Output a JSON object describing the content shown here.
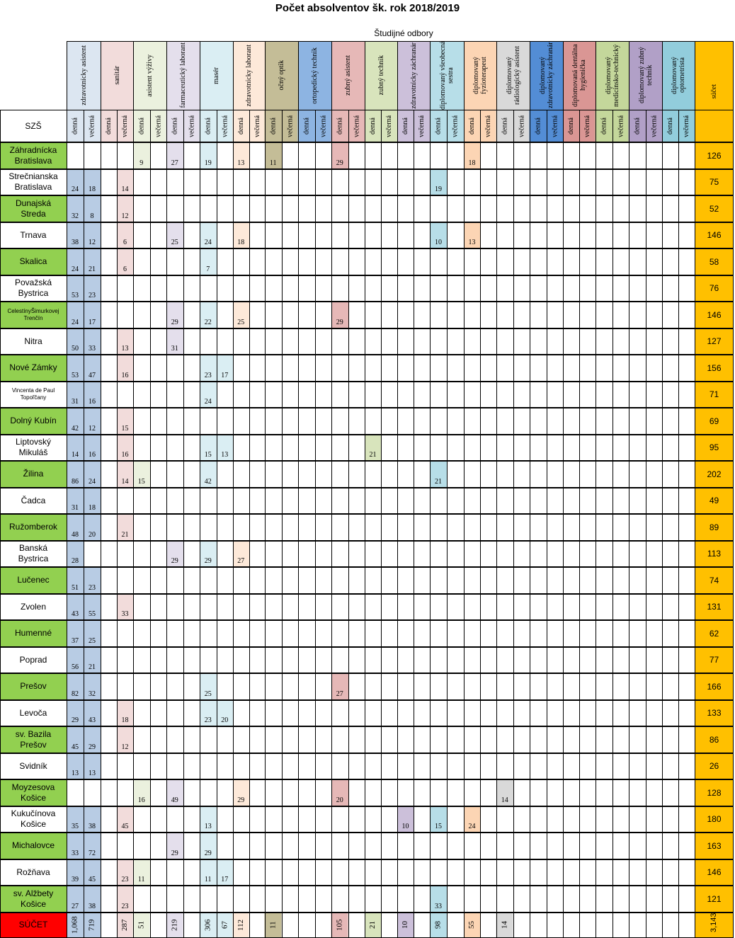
{
  "title": "Počet absolventov šk. rok 2018/2019",
  "subtitle": "Študijné odbory",
  "szs_label": "SZŠ",
  "sum_col_label": "súčet",
  "form_day": "denná",
  "form_evening": "večerná",
  "colors": {
    "header_green": "#92d050",
    "sum_orange": "#ffc000",
    "total_red": "#ff0000"
  },
  "specialties": [
    {
      "name": "zdravotnícky asistent",
      "header_color": "#dce6f1",
      "cell_color": "#b8cce4"
    },
    {
      "name": "sanitár",
      "header_color": "#f2dcdb",
      "cell_color": "#f2dcdb"
    },
    {
      "name": "asistent výživy",
      "header_color": "#ebf1de",
      "cell_color": "#ebf1de"
    },
    {
      "name": "farmaceutický laborant",
      "header_color": "#e4dfec",
      "cell_color": "#e4dfec"
    },
    {
      "name": "masér",
      "header_color": "#daeef3",
      "cell_color": "#daeef3"
    },
    {
      "name": "zdravotnícky laborant",
      "header_color": "#fde9d9",
      "cell_color": "#fde9d9"
    },
    {
      "name": "očný optik",
      "header_color": "#c4bd97",
      "cell_color": "#c4bd97"
    },
    {
      "name": "ortopedický technik",
      "header_color": "#8db4e2",
      "cell_color": "#8db4e2"
    },
    {
      "name": "zubný asistent",
      "header_color": "#e6b8b7",
      "cell_color": "#e6b8b7"
    },
    {
      "name": "zubný technik",
      "header_color": "#d8e4bc",
      "cell_color": "#d8e4bc"
    },
    {
      "name": "zdravotnícky záchranár",
      "header_color": "#ccc0da",
      "cell_color": "#ccc0da"
    },
    {
      "name": "diplomovaný všeobecná sestra",
      "header_color": "#b7dee8",
      "cell_color": "#b7dee8"
    },
    {
      "name": "diplomovaný fyzioterapeut",
      "header_color": "#fcd5b4",
      "cell_color": "#fcd5b4"
    },
    {
      "name": "diplomovaný rádiologický asistent",
      "header_color": "#d9d9d9",
      "cell_color": "#d9d9d9"
    },
    {
      "name": "diplomovaný zdravotnícky záchranár",
      "header_color": "#538dd5",
      "cell_color": "#538dd5"
    },
    {
      "name": "diplomovaná dentálna hygienička",
      "header_color": "#da9694",
      "cell_color": "#da9694"
    },
    {
      "name": "diplomovaný medicínsko-technický",
      "header_color": "#c4d79b",
      "cell_color": "#c4d79b"
    },
    {
      "name": "diplomovaný zubný technik",
      "header_color": "#b1a0c7",
      "cell_color": "#b1a0c7"
    },
    {
      "name": "diplomovaný optometrista",
      "header_color": "#92cddc",
      "cell_color": "#92cddc"
    }
  ],
  "rows": [
    {
      "school": "Záhradnícka\nBratislava",
      "green": true,
      "small": false,
      "cells": {
        "4": "9",
        "6": "27",
        "8": "19",
        "10": "13",
        "12": "11",
        "16": "29",
        "24": "18"
      },
      "sum": "126"
    },
    {
      "school": "Strečnianska\nBratislava",
      "green": false,
      "small": false,
      "cells": {
        "0": "24",
        "1": "18",
        "3": "14",
        "22": "19"
      },
      "sum": "75"
    },
    {
      "school": "Dunajská\nStreda",
      "green": true,
      "small": false,
      "cells": {
        "0": "32",
        "1": "8",
        "3": "12"
      },
      "sum": "52"
    },
    {
      "school": "Trnava",
      "green": false,
      "small": false,
      "cells": {
        "0": "38",
        "1": "12",
        "3": "6",
        "6": "25",
        "8": "24",
        "10": "18",
        "22": "10",
        "24": "13"
      },
      "sum": "146"
    },
    {
      "school": "Skalica",
      "green": true,
      "small": false,
      "cells": {
        "0": "24",
        "1": "21",
        "3": "6",
        "8": "7"
      },
      "sum": "58"
    },
    {
      "school": "Považská\nBystrica",
      "green": false,
      "small": false,
      "cells": {
        "0": "53",
        "1": "23"
      },
      "sum": "76"
    },
    {
      "school": "CelestínyŠimurkovej\nTrenčín",
      "green": true,
      "small": true,
      "cells": {
        "0": "24",
        "1": "17",
        "6": "29",
        "8": "22",
        "10": "25",
        "16": "29"
      },
      "sum": "146"
    },
    {
      "school": "Nitra",
      "green": false,
      "small": false,
      "cells": {
        "0": "50",
        "1": "33",
        "3": "13",
        "6": "31"
      },
      "sum": "127"
    },
    {
      "school": "Nové Zámky",
      "green": true,
      "small": false,
      "cells": {
        "0": "53",
        "1": "47",
        "3": "16",
        "8": "23",
        "9": "17"
      },
      "sum": "156"
    },
    {
      "school": "Vincenta de Paul\nTopoľčany",
      "green": false,
      "small": true,
      "cells": {
        "0": "31",
        "1": "16",
        "8": "24"
      },
      "sum": "71"
    },
    {
      "school": "Dolný Kubín",
      "green": true,
      "small": false,
      "cells": {
        "0": "42",
        "1": "12",
        "3": "15"
      },
      "sum": "69"
    },
    {
      "school": "Liptovský\nMikuláš",
      "green": false,
      "small": false,
      "cells": {
        "0": "14",
        "1": "16",
        "3": "16",
        "8": "15",
        "9": "13",
        "18": "21"
      },
      "sum": "95"
    },
    {
      "school": "Žilina",
      "green": true,
      "small": false,
      "cells": {
        "0": "86",
        "1": "24",
        "3": "14",
        "4": "15",
        "8": "42",
        "22": "21"
      },
      "sum": "202"
    },
    {
      "school": "Čadca",
      "green": false,
      "small": false,
      "cells": {
        "0": "31",
        "1": "18"
      },
      "sum": "49"
    },
    {
      "school": "Ružomberok",
      "green": true,
      "small": false,
      "cells": {
        "0": "48",
        "1": "20",
        "3": "21"
      },
      "sum": "89"
    },
    {
      "school": "Banská\nBystrica",
      "green": false,
      "small": false,
      "cells": {
        "0": "28",
        "6": "29",
        "8": "29",
        "10": "27"
      },
      "sum": "113"
    },
    {
      "school": "Lučenec",
      "green": true,
      "small": false,
      "cells": {
        "0": "51",
        "1": "23"
      },
      "sum": "74"
    },
    {
      "school": "Zvolen",
      "green": false,
      "small": false,
      "cells": {
        "0": "43",
        "1": "55",
        "3": "33"
      },
      "sum": "131"
    },
    {
      "school": "Humenné",
      "green": true,
      "small": false,
      "cells": {
        "0": "37",
        "1": "25"
      },
      "sum": "62"
    },
    {
      "school": "Poprad",
      "green": false,
      "small": false,
      "cells": {
        "0": "56",
        "1": "21"
      },
      "sum": "77"
    },
    {
      "school": "Prešov",
      "green": true,
      "small": false,
      "cells": {
        "0": "82",
        "1": "32",
        "8": "25",
        "16": "27"
      },
      "sum": "166"
    },
    {
      "school": "Levoča",
      "green": false,
      "small": false,
      "cells": {
        "0": "29",
        "1": "43",
        "3": "18",
        "8": "23",
        "9": "20"
      },
      "sum": "133"
    },
    {
      "school": "sv. Bazila\nPrešov",
      "green": true,
      "small": false,
      "cells": {
        "0": "45",
        "1": "29",
        "3": "12"
      },
      "sum": "86"
    },
    {
      "school": "Svidník",
      "green": false,
      "small": false,
      "cells": {
        "0": "13",
        "1": "13"
      },
      "sum": "26"
    },
    {
      "school": "Moyzesova\nKošice",
      "green": true,
      "small": false,
      "cells": {
        "4": "16",
        "6": "49",
        "10": "29",
        "16": "20",
        "26": "14"
      },
      "sum": "128"
    },
    {
      "school": "Kukučínova\nKošice",
      "green": false,
      "small": false,
      "cells": {
        "0": "35",
        "1": "38",
        "3": "45",
        "8": "13",
        "20": "10",
        "22": "15",
        "24": "24"
      },
      "sum": "180"
    },
    {
      "school": "Michalovce",
      "green": true,
      "small": false,
      "cells": {
        "0": "33",
        "1": "72",
        "6": "29",
        "8": "29"
      },
      "sum": "163"
    },
    {
      "school": "Rožňava",
      "green": false,
      "small": false,
      "cells": {
        "0": "39",
        "1": "45",
        "3": "23",
        "4": "11",
        "8": "11",
        "9": "17"
      },
      "sum": "146"
    },
    {
      "school": "sv. Alžbety\nKošice",
      "green": true,
      "small": false,
      "cells": {
        "0": "27",
        "1": "38",
        "3": "23",
        "22": "33"
      },
      "sum": "121"
    }
  ],
  "total_row": {
    "label": "SÚČET",
    "cells": {
      "0": "1,068",
      "1": "719",
      "3": "287",
      "4": "51",
      "6": "219",
      "8": "306",
      "9": "67",
      "10": "112",
      "12": "11",
      "16": "105",
      "18": "21",
      "20": "10",
      "22": "98",
      "24": "55",
      "26": "14"
    },
    "sum": "3,143"
  }
}
